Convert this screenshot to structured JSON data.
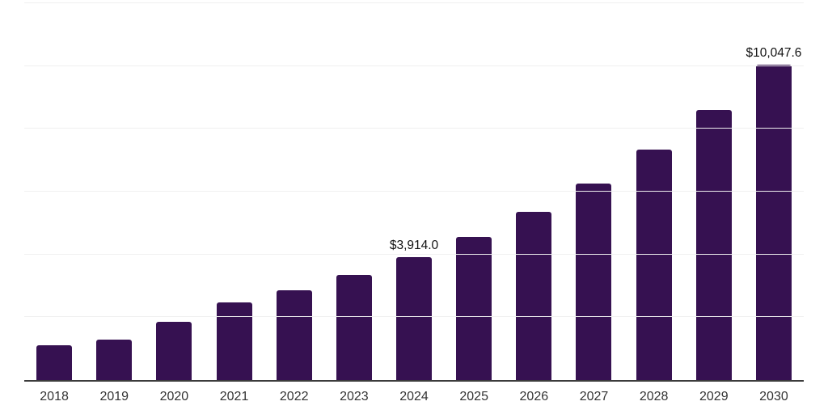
{
  "chart_data": {
    "type": "bar",
    "title": "",
    "categories": [
      "2018",
      "2019",
      "2020",
      "2021",
      "2022",
      "2023",
      "2024",
      "2025",
      "2026",
      "2027",
      "2028",
      "2029",
      "2030"
    ],
    "values": [
      1100,
      1280,
      1860,
      2460,
      2860,
      3340,
      3914.0,
      4570,
      5360,
      6250,
      7330,
      8590,
      10047.6
    ],
    "bar_labels": [
      "",
      "",
      "",
      "",
      "",
      "",
      "$3,914.0",
      "",
      "",
      "",
      "",
      "",
      "$10,047.6"
    ],
    "xlabel": "",
    "ylabel": "",
    "ylim": [
      0,
      12000
    ],
    "gridline_step": 2000,
    "grid": "horizontal-only",
    "legend": "none",
    "y_tick_labels_visible": false,
    "bar_color": "#361151",
    "gridline_color": "#f0f0f0",
    "axis_color": "#3c3c3c",
    "tick_label_color": "#333333",
    "value_label_color": "#111111"
  }
}
